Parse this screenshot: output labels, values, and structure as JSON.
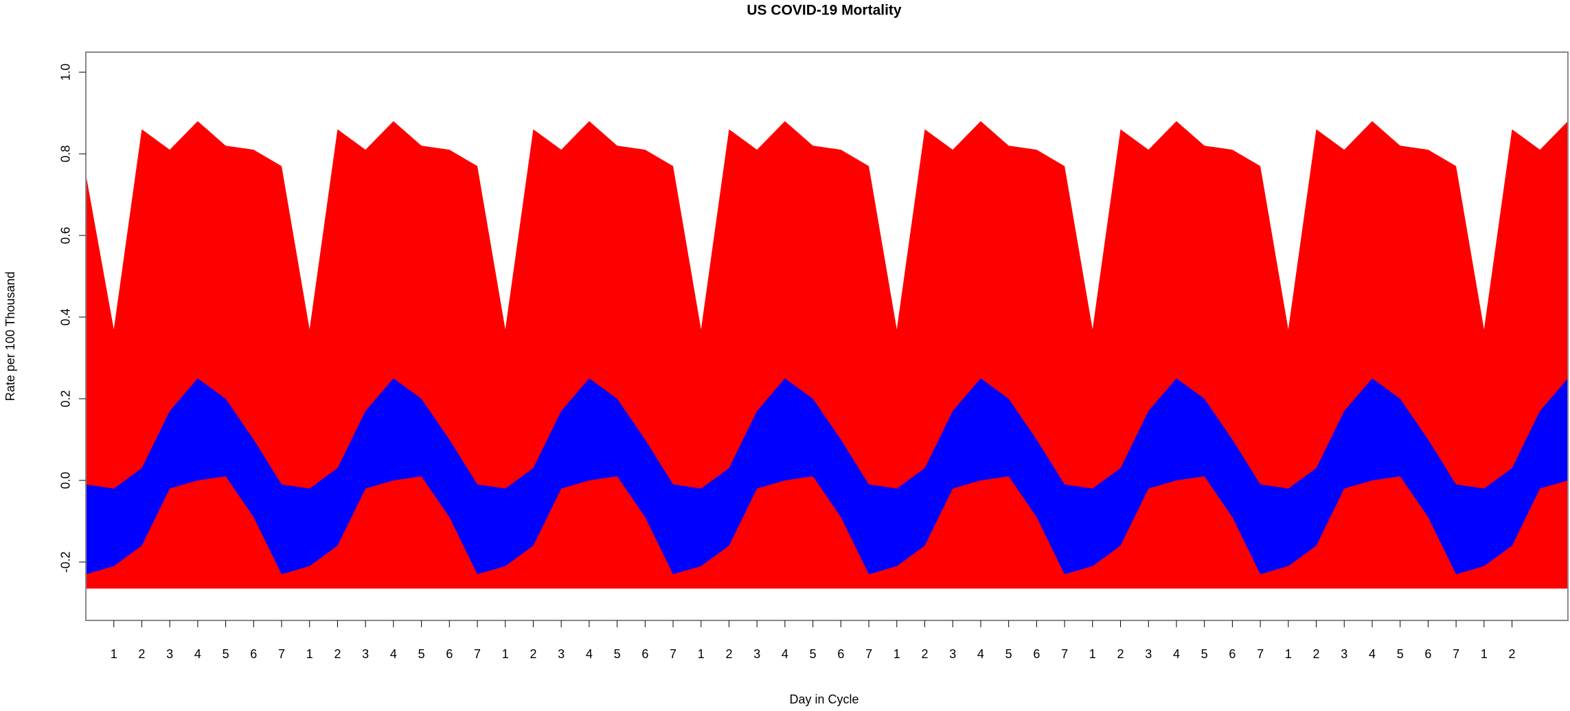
{
  "chart_data": {
    "type": "area",
    "title": "US COVID-19 Mortality",
    "xlabel": "Day in Cycle",
    "ylabel": "Rate per 100 Thousand",
    "x": [
      0,
      1,
      2,
      3,
      4,
      5,
      6,
      7,
      8,
      9,
      10,
      11,
      12,
      13,
      14,
      15,
      16,
      17,
      18,
      19,
      20,
      21,
      22,
      23,
      24,
      25,
      26,
      27,
      28,
      29,
      30,
      31,
      32,
      33,
      34,
      35,
      36,
      37,
      38,
      39,
      40,
      41,
      42,
      43,
      44,
      45,
      46,
      47,
      48,
      49,
      50,
      51,
      52,
      53
    ],
    "xlim": [
      0,
      53
    ],
    "xticks": [
      1,
      2,
      3,
      4,
      5,
      6,
      7,
      {
        "value": 8,
        "label": "1"
      },
      {
        "value": 9,
        "label": "2"
      },
      {
        "value": 10,
        "label": "3"
      },
      {
        "value": 11,
        "label": "4"
      },
      {
        "value": 12,
        "label": "5"
      },
      {
        "value": 13,
        "label": "6"
      },
      {
        "value": 14,
        "label": "7"
      },
      {
        "value": 15,
        "label": "1"
      },
      {
        "value": 16,
        "label": "2"
      },
      {
        "value": 17,
        "label": "3"
      },
      {
        "value": 18,
        "label": "4"
      },
      {
        "value": 19,
        "label": "5"
      },
      {
        "value": 20,
        "label": "6"
      },
      {
        "value": 21,
        "label": "7"
      },
      {
        "value": 22,
        "label": "1"
      },
      {
        "value": 23,
        "label": "2"
      },
      {
        "value": 24,
        "label": "3"
      },
      {
        "value": 25,
        "label": "4"
      },
      {
        "value": 26,
        "label": "5"
      },
      {
        "value": 27,
        "label": "6"
      },
      {
        "value": 28,
        "label": "7"
      },
      {
        "value": 29,
        "label": "1"
      },
      {
        "value": 30,
        "label": "2"
      },
      {
        "value": 31,
        "label": "3"
      },
      {
        "value": 32,
        "label": "4"
      },
      {
        "value": 33,
        "label": "5"
      },
      {
        "value": 34,
        "label": "6"
      },
      {
        "value": 35,
        "label": "7"
      },
      {
        "value": 36,
        "label": "1"
      },
      {
        "value": 37,
        "label": "2"
      },
      {
        "value": 38,
        "label": "3"
      },
      {
        "value": 39,
        "label": "4"
      },
      {
        "value": 40,
        "label": "5"
      },
      {
        "value": 41,
        "label": "6"
      },
      {
        "value": 42,
        "label": "7"
      },
      {
        "value": 43,
        "label": "1"
      },
      {
        "value": 44,
        "label": "2"
      },
      {
        "value": 45,
        "label": "3"
      },
      {
        "value": 46,
        "label": "4"
      },
      {
        "value": 47,
        "label": "5"
      },
      {
        "value": 48,
        "label": "6"
      },
      {
        "value": 49,
        "label": "7"
      },
      {
        "value": 50,
        "label": "1"
      },
      {
        "value": 51,
        "label": "2"
      }
    ],
    "ylim": [
      -0.343,
      1.049
    ],
    "yticks": [
      -0.2,
      {
        "value": 0,
        "label": "0.0"
      },
      0.2,
      0.4,
      0.6,
      0.8,
      {
        "value": 1,
        "label": "1.0"
      }
    ],
    "area_base": -0.265,
    "series": [
      {
        "color": "#ff0000",
        "values": [
          0.75,
          0.37,
          0.86,
          0.81,
          0.88,
          0.82,
          0.81,
          0.77,
          0.37,
          0.86,
          0.81,
          0.88,
          0.82,
          0.81,
          0.77,
          0.37,
          0.86,
          0.81,
          0.88,
          0.82,
          0.81,
          0.77,
          0.37,
          0.86,
          0.81,
          0.88,
          0.82,
          0.81,
          0.77,
          0.37,
          0.86,
          0.81,
          0.88,
          0.82,
          0.81,
          0.77,
          0.37,
          0.86,
          0.81,
          0.88,
          0.82,
          0.81,
          0.77,
          0.37,
          0.86,
          0.81,
          0.88,
          0.82,
          0.81,
          0.77,
          0.37,
          0.86,
          0.81,
          0.88
        ]
      },
      {
        "color": "#0000ff",
        "values": [
          -0.01,
          -0.02,
          0.03,
          0.17,
          0.25,
          0.2,
          0.1,
          -0.01,
          -0.02,
          0.03,
          0.17,
          0.25,
          0.2,
          0.1,
          -0.01,
          -0.02,
          0.03,
          0.17,
          0.25,
          0.2,
          0.1,
          -0.01,
          -0.02,
          0.03,
          0.17,
          0.25,
          0.2,
          0.1,
          -0.01,
          -0.02,
          0.03,
          0.17,
          0.25,
          0.2,
          0.1,
          -0.01,
          -0.02,
          0.03,
          0.17,
          0.25,
          0.2,
          0.1,
          -0.01,
          -0.02,
          0.03,
          0.17,
          0.25,
          0.2,
          0.1,
          -0.01,
          -0.02,
          0.03,
          0.17,
          0.25
        ]
      },
      {
        "color": "#0000ff",
        "values": [
          -0.23,
          -0.21,
          -0.16,
          -0.02,
          0,
          0.01,
          -0.09,
          -0.23,
          -0.21,
          -0.16,
          -0.02,
          0,
          0.01,
          -0.09,
          -0.23,
          -0.21,
          -0.16,
          -0.02,
          0,
          0.01,
          -0.09,
          -0.23,
          -0.21,
          -0.16,
          -0.02,
          0,
          0.01,
          -0.09,
          -0.23,
          -0.21,
          -0.16,
          -0.02,
          0,
          0.01,
          -0.09,
          -0.23,
          -0.21,
          -0.16,
          -0.02,
          0,
          0.01,
          -0.09,
          -0.23,
          -0.21,
          -0.16,
          -0.02,
          0,
          0.01,
          -0.09,
          -0.23,
          -0.21,
          -0.16,
          -0.02,
          0
        ]
      }
    ]
  }
}
